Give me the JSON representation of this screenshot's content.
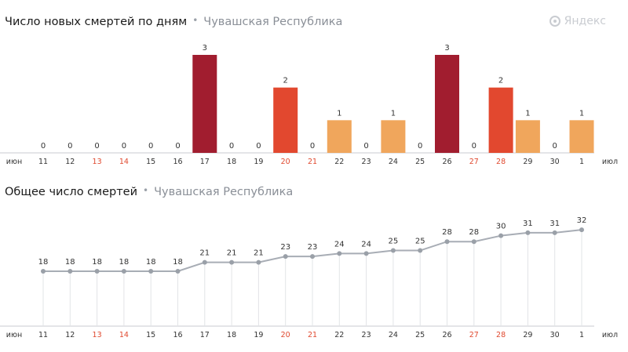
{
  "logo": {
    "text": "Яндекс",
    "icon": "yandex-logo-icon"
  },
  "colors": {
    "bar_3": "#a11d2f",
    "bar_2": "#e2482f",
    "bar_1": "#f0a65c",
    "line": "#a8adb5",
    "point": "#9aa0a8",
    "axis": "#c8cbd0",
    "weekend": "#e0492f",
    "tick": "#333333"
  },
  "chart_data": [
    {
      "type": "bar",
      "title": "Число новых смертей по дням",
      "subtitle": "Чувашская Республика",
      "start_label": "июн",
      "end_label": "июл",
      "categories": [
        "11",
        "12",
        "13",
        "14",
        "15",
        "16",
        "17",
        "18",
        "19",
        "20",
        "21",
        "22",
        "23",
        "24",
        "25",
        "26",
        "27",
        "28",
        "29",
        "30",
        "1"
      ],
      "weekend": [
        false,
        false,
        true,
        true,
        false,
        false,
        false,
        false,
        false,
        true,
        true,
        false,
        false,
        false,
        false,
        false,
        true,
        true,
        false,
        false,
        false
      ],
      "values": [
        0,
        0,
        0,
        0,
        0,
        0,
        3,
        0,
        0,
        2,
        0,
        1,
        0,
        1,
        0,
        3,
        0,
        2,
        1,
        0,
        1
      ],
      "ylim": [
        0,
        3
      ]
    },
    {
      "type": "line",
      "title": "Общее число смертей",
      "subtitle": "Чувашская Республика",
      "start_label": "июн",
      "end_label": "июл",
      "categories": [
        "11",
        "12",
        "13",
        "14",
        "15",
        "16",
        "17",
        "18",
        "19",
        "20",
        "21",
        "22",
        "23",
        "24",
        "25",
        "26",
        "27",
        "28",
        "29",
        "30",
        "1"
      ],
      "weekend": [
        false,
        false,
        true,
        true,
        false,
        false,
        false,
        false,
        false,
        true,
        true,
        false,
        false,
        false,
        false,
        false,
        true,
        true,
        false,
        false,
        false
      ],
      "values": [
        18,
        18,
        18,
        18,
        18,
        18,
        21,
        21,
        21,
        23,
        23,
        24,
        24,
        25,
        25,
        28,
        28,
        30,
        31,
        31,
        32
      ],
      "ylim": [
        0,
        32
      ]
    }
  ]
}
